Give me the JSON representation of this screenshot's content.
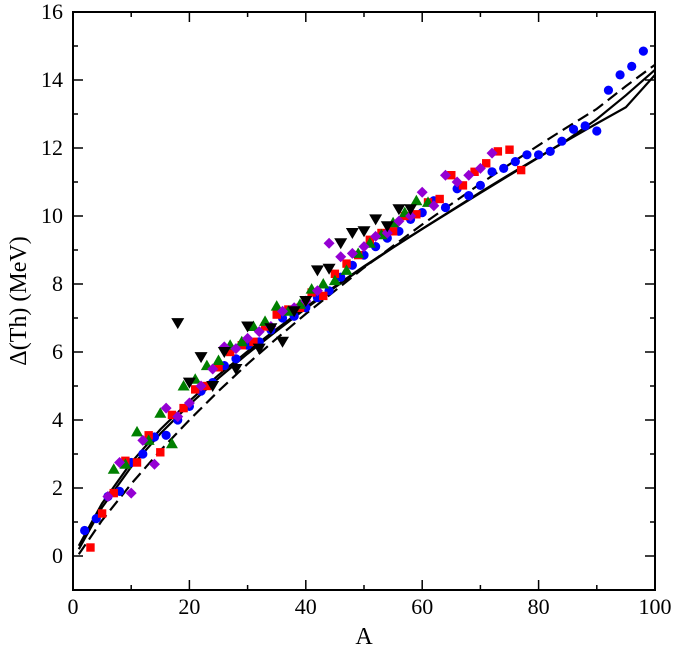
{
  "chart_data": {
    "type": "scatter",
    "xlabel": "A",
    "ylabel": "Δ(Th) (MeV)",
    "xlim": [
      0,
      100
    ],
    "ylim": [
      -1,
      16
    ],
    "x_ticks": [
      0,
      20,
      40,
      60,
      80,
      100
    ],
    "y_ticks": [
      0,
      2,
      4,
      6,
      8,
      10,
      12,
      14,
      16
    ],
    "grid": false,
    "legend": "none",
    "series": [
      {
        "marker": "circle",
        "color": "#0000ff",
        "points": [
          [
            2,
            0.75
          ],
          [
            4,
            1.1
          ],
          [
            6,
            1.75
          ],
          [
            8,
            1.9
          ],
          [
            10,
            2.75
          ],
          [
            12,
            3.0
          ],
          [
            14,
            3.5
          ],
          [
            16,
            3.55
          ],
          [
            18,
            4.0
          ],
          [
            20,
            4.4
          ],
          [
            22,
            4.85
          ],
          [
            24,
            5.1
          ],
          [
            26,
            5.6
          ],
          [
            28,
            5.8
          ],
          [
            30,
            6.2
          ],
          [
            32,
            6.3
          ],
          [
            34,
            6.65
          ],
          [
            36,
            7.0
          ],
          [
            38,
            7.05
          ],
          [
            40,
            7.3
          ],
          [
            42,
            7.6
          ],
          [
            44,
            7.8
          ],
          [
            46,
            8.2
          ],
          [
            48,
            8.55
          ],
          [
            50,
            8.85
          ],
          [
            52,
            9.1
          ],
          [
            54,
            9.35
          ],
          [
            56,
            9.55
          ],
          [
            58,
            9.9
          ],
          [
            60,
            10.1
          ],
          [
            62,
            10.45
          ],
          [
            64,
            10.25
          ],
          [
            66,
            10.8
          ],
          [
            68,
            10.6
          ],
          [
            70,
            10.9
          ],
          [
            72,
            11.3
          ],
          [
            74,
            11.4
          ],
          [
            76,
            11.6
          ],
          [
            78,
            11.8
          ],
          [
            80,
            11.8
          ],
          [
            82,
            11.9
          ],
          [
            84,
            12.2
          ],
          [
            86,
            12.55
          ],
          [
            88,
            12.65
          ],
          [
            90,
            12.5
          ],
          [
            92,
            13.7
          ],
          [
            94,
            14.15
          ],
          [
            96,
            14.4
          ],
          [
            98,
            14.85
          ]
        ]
      },
      {
        "marker": "square",
        "color": "#ff0000",
        "points": [
          [
            3,
            0.25
          ],
          [
            5,
            1.25
          ],
          [
            7,
            1.85
          ],
          [
            9,
            2.8
          ],
          [
            11,
            2.75
          ],
          [
            13,
            3.55
          ],
          [
            15,
            3.05
          ],
          [
            17,
            4.15
          ],
          [
            19,
            4.35
          ],
          [
            21,
            4.9
          ],
          [
            23,
            5.0
          ],
          [
            25,
            5.55
          ],
          [
            27,
            6.0
          ],
          [
            29,
            6.2
          ],
          [
            31,
            6.3
          ],
          [
            33,
            6.75
          ],
          [
            35,
            7.1
          ],
          [
            37,
            7.25
          ],
          [
            39,
            7.3
          ],
          [
            41,
            7.75
          ],
          [
            43,
            7.65
          ],
          [
            45,
            8.3
          ],
          [
            47,
            8.6
          ],
          [
            49,
            8.85
          ],
          [
            51,
            9.3
          ],
          [
            53,
            9.5
          ],
          [
            55,
            9.55
          ],
          [
            57,
            10.0
          ],
          [
            59,
            10.05
          ],
          [
            61,
            10.4
          ],
          [
            63,
            10.5
          ],
          [
            65,
            11.2
          ],
          [
            67,
            10.9
          ],
          [
            69,
            11.3
          ],
          [
            71,
            11.55
          ],
          [
            73,
            11.9
          ],
          [
            75,
            11.95
          ],
          [
            77,
            11.35
          ]
        ]
      },
      {
        "marker": "triangle-up",
        "color": "#008000",
        "points": [
          [
            7,
            2.55
          ],
          [
            9,
            2.7
          ],
          [
            11,
            3.65
          ],
          [
            13,
            3.4
          ],
          [
            15,
            4.2
          ],
          [
            17,
            3.3
          ],
          [
            19,
            5.0
          ],
          [
            21,
            5.2
          ],
          [
            23,
            5.6
          ],
          [
            25,
            5.75
          ],
          [
            27,
            6.2
          ],
          [
            29,
            6.3
          ],
          [
            31,
            6.75
          ],
          [
            33,
            6.9
          ],
          [
            35,
            7.35
          ],
          [
            37,
            7.2
          ],
          [
            39,
            7.4
          ],
          [
            41,
            7.85
          ],
          [
            43,
            8.0
          ],
          [
            45,
            8.1
          ],
          [
            47,
            8.4
          ],
          [
            49,
            8.9
          ],
          [
            51,
            9.2
          ],
          [
            53,
            9.45
          ],
          [
            55,
            9.8
          ],
          [
            57,
            10.1
          ],
          [
            59,
            10.45
          ],
          [
            61,
            10.4
          ]
        ]
      },
      {
        "marker": "diamond",
        "color": "#9400d3",
        "points": [
          [
            6,
            1.75
          ],
          [
            8,
            2.75
          ],
          [
            10,
            1.85
          ],
          [
            12,
            3.4
          ],
          [
            14,
            2.7
          ],
          [
            16,
            4.35
          ],
          [
            18,
            4.1
          ],
          [
            20,
            4.5
          ],
          [
            22,
            5.0
          ],
          [
            24,
            5.5
          ],
          [
            26,
            6.15
          ],
          [
            28,
            6.1
          ],
          [
            30,
            6.4
          ],
          [
            32,
            6.6
          ],
          [
            34,
            6.75
          ],
          [
            36,
            7.2
          ],
          [
            38,
            7.3
          ],
          [
            40,
            7.5
          ],
          [
            42,
            7.8
          ],
          [
            44,
            9.2
          ],
          [
            46,
            8.8
          ],
          [
            48,
            8.9
          ],
          [
            50,
            9.1
          ],
          [
            52,
            9.4
          ],
          [
            54,
            9.5
          ],
          [
            56,
            9.85
          ],
          [
            58,
            10.0
          ],
          [
            60,
            10.7
          ],
          [
            62,
            10.3
          ],
          [
            64,
            11.2
          ],
          [
            66,
            11.0
          ],
          [
            68,
            11.2
          ],
          [
            70,
            11.4
          ],
          [
            72,
            11.85
          ]
        ]
      },
      {
        "marker": "triangle-down",
        "color": "#000000",
        "points": [
          [
            18,
            6.85
          ],
          [
            20,
            5.1
          ],
          [
            22,
            5.85
          ],
          [
            24,
            5.0
          ],
          [
            26,
            6.0
          ],
          [
            28,
            5.5
          ],
          [
            30,
            6.75
          ],
          [
            32,
            6.1
          ],
          [
            34,
            6.7
          ],
          [
            36,
            6.3
          ],
          [
            38,
            7.2
          ],
          [
            40,
            7.5
          ],
          [
            42,
            8.4
          ],
          [
            44,
            8.45
          ],
          [
            46,
            9.2
          ],
          [
            48,
            9.5
          ],
          [
            50,
            9.55
          ],
          [
            52,
            9.9
          ],
          [
            54,
            9.7
          ],
          [
            56,
            10.2
          ],
          [
            58,
            10.2
          ]
        ]
      }
    ],
    "curves": [
      {
        "style": "solid",
        "width": 2.2,
        "points": [
          [
            1,
            0.2
          ],
          [
            5,
            1.43
          ],
          [
            10,
            2.62
          ],
          [
            15,
            3.6
          ],
          [
            20,
            4.45
          ],
          [
            25,
            5.23
          ],
          [
            30,
            5.95
          ],
          [
            35,
            6.62
          ],
          [
            40,
            7.28
          ],
          [
            45,
            7.9
          ],
          [
            50,
            8.5
          ],
          [
            55,
            9.07
          ],
          [
            60,
            9.62
          ],
          [
            65,
            10.16
          ],
          [
            70,
            10.7
          ],
          [
            75,
            11.22
          ],
          [
            80,
            11.73
          ],
          [
            85,
            12.23
          ],
          [
            90,
            12.72
          ],
          [
            95,
            13.2
          ],
          [
            100,
            14.15
          ]
        ]
      },
      {
        "style": "dashed",
        "width": 2.2,
        "points": [
          [
            1,
            0.05
          ],
          [
            5,
            1.05
          ],
          [
            10,
            2.12
          ],
          [
            15,
            3.1
          ],
          [
            20,
            4.0
          ],
          [
            25,
            4.85
          ],
          [
            30,
            5.65
          ],
          [
            35,
            6.4
          ],
          [
            40,
            7.12
          ],
          [
            45,
            7.8
          ],
          [
            50,
            8.48
          ],
          [
            55,
            9.12
          ],
          [
            60,
            9.75
          ],
          [
            65,
            10.35
          ],
          [
            70,
            10.95
          ],
          [
            75,
            11.52
          ],
          [
            80,
            12.08
          ],
          [
            85,
            12.62
          ],
          [
            90,
            13.15
          ],
          [
            95,
            13.82
          ],
          [
            100,
            14.45
          ]
        ]
      },
      {
        "style": "solid",
        "width": 2.2,
        "points": [
          [
            1,
            0.3
          ],
          [
            5,
            1.55
          ],
          [
            10,
            2.75
          ],
          [
            15,
            3.72
          ],
          [
            20,
            4.56
          ],
          [
            25,
            5.32
          ],
          [
            30,
            6.02
          ],
          [
            35,
            6.68
          ],
          [
            40,
            7.32
          ],
          [
            45,
            7.93
          ],
          [
            50,
            8.52
          ],
          [
            55,
            9.08
          ],
          [
            60,
            9.62
          ],
          [
            65,
            10.15
          ],
          [
            70,
            10.68
          ],
          [
            75,
            11.2
          ],
          [
            80,
            11.72
          ],
          [
            85,
            12.25
          ],
          [
            90,
            12.85
          ],
          [
            95,
            13.55
          ],
          [
            100,
            14.3
          ]
        ]
      }
    ]
  }
}
